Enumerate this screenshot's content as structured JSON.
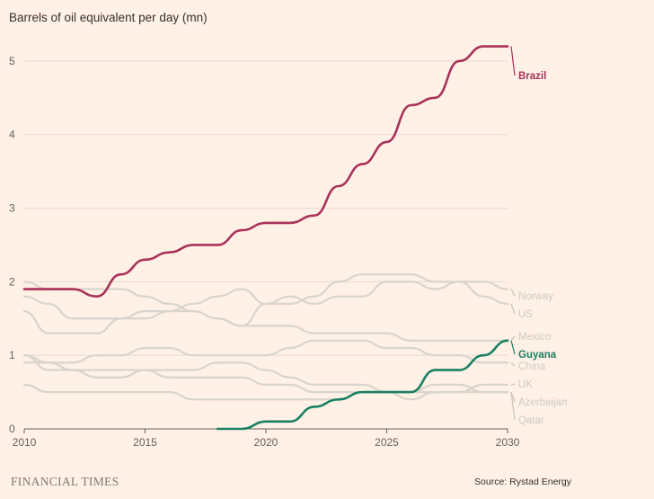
{
  "chart_data": {
    "type": "line",
    "ylabel": "Barrels of oil equivalent per day (mn)",
    "xlim": [
      2010,
      2030
    ],
    "ylim": [
      0,
      5.5
    ],
    "xticks": [
      2010,
      2015,
      2020,
      2025,
      2030
    ],
    "yticks": [
      0,
      1,
      2,
      3,
      4,
      5
    ],
    "grid": "horizontal",
    "legend": "direct labels at right end of lines",
    "colors": {
      "highlight_brazil": "#a8325b",
      "highlight_guyana": "#1a8062",
      "background_lines": "#d9d4cd",
      "muted_label": "#cfc9c2"
    },
    "series": [
      {
        "name": "Brazil",
        "highlight": "brazil",
        "x": [
          2010,
          2011,
          2012,
          2013,
          2014,
          2015,
          2016,
          2017,
          2018,
          2019,
          2020,
          2021,
          2022,
          2023,
          2024,
          2025,
          2026,
          2027,
          2028,
          2029,
          2030
        ],
        "y": [
          1.9,
          1.9,
          1.9,
          1.8,
          2.1,
          2.3,
          2.4,
          2.5,
          2.5,
          2.7,
          2.8,
          2.8,
          2.9,
          3.3,
          3.6,
          3.9,
          4.4,
          4.5,
          5.0,
          5.2,
          5.2
        ]
      },
      {
        "name": "Guyana",
        "highlight": "guyana",
        "x": [
          2018,
          2019,
          2020,
          2021,
          2022,
          2023,
          2024,
          2025,
          2026,
          2027,
          2028,
          2029,
          2030
        ],
        "y": [
          0,
          0,
          0.1,
          0.1,
          0.3,
          0.4,
          0.5,
          0.5,
          0.5,
          0.8,
          0.8,
          1.0,
          1.2
        ]
      },
      {
        "name": "Norway",
        "x": [
          2010,
          2011,
          2012,
          2013,
          2014,
          2015,
          2016,
          2017,
          2018,
          2019,
          2020,
          2021,
          2022,
          2023,
          2024,
          2025,
          2026,
          2027,
          2028,
          2029,
          2030
        ],
        "y": [
          2.0,
          1.9,
          1.9,
          1.9,
          1.9,
          1.8,
          1.7,
          1.6,
          1.5,
          1.4,
          1.7,
          1.7,
          1.8,
          2.0,
          2.1,
          2.1,
          2.1,
          2.0,
          2.0,
          2.0,
          1.9
        ]
      },
      {
        "name": "US",
        "x": [
          2010,
          2011,
          2012,
          2013,
          2014,
          2015,
          2016,
          2017,
          2018,
          2019,
          2020,
          2021,
          2022,
          2023,
          2024,
          2025,
          2026,
          2027,
          2028,
          2029,
          2030
        ],
        "y": [
          1.8,
          1.7,
          1.5,
          1.5,
          1.5,
          1.6,
          1.6,
          1.7,
          1.8,
          1.9,
          1.7,
          1.8,
          1.7,
          1.8,
          1.8,
          2.0,
          2.0,
          1.9,
          2.0,
          1.8,
          1.7
        ]
      },
      {
        "name": "Mexico",
        "x": [
          2010,
          2011,
          2012,
          2013,
          2014,
          2015,
          2016,
          2017,
          2018,
          2019,
          2020,
          2021,
          2022,
          2023,
          2024,
          2025,
          2026,
          2027,
          2028,
          2029,
          2030
        ],
        "y": [
          1.6,
          1.3,
          1.3,
          1.3,
          1.5,
          1.5,
          1.6,
          1.6,
          1.5,
          1.4,
          1.4,
          1.4,
          1.3,
          1.3,
          1.3,
          1.3,
          1.2,
          1.2,
          1.2,
          1.2,
          1.2
        ]
      },
      {
        "name": "China",
        "x": [
          2010,
          2011,
          2012,
          2013,
          2014,
          2015,
          2016,
          2017,
          2018,
          2019,
          2020,
          2021,
          2022,
          2023,
          2024,
          2025,
          2026,
          2027,
          2028,
          2029,
          2030
        ],
        "y": [
          0.9,
          0.9,
          0.9,
          1.0,
          1.0,
          1.1,
          1.1,
          1.0,
          1.0,
          1.0,
          1.0,
          1.1,
          1.2,
          1.2,
          1.2,
          1.1,
          1.1,
          1.0,
          1.0,
          0.9,
          0.9
        ]
      },
      {
        "name": "UK",
        "x": [
          2010,
          2011,
          2012,
          2013,
          2014,
          2015,
          2016,
          2017,
          2018,
          2019,
          2020,
          2021,
          2022,
          2023,
          2024,
          2025,
          2026,
          2027,
          2028,
          2029,
          2030
        ],
        "y": [
          1.0,
          0.9,
          0.8,
          0.7,
          0.7,
          0.8,
          0.7,
          0.7,
          0.7,
          0.7,
          0.6,
          0.6,
          0.5,
          0.5,
          0.5,
          0.5,
          0.4,
          0.5,
          0.5,
          0.6,
          0.6
        ]
      },
      {
        "name": "Azerbaijan",
        "x": [
          2010,
          2011,
          2012,
          2013,
          2014,
          2015,
          2016,
          2017,
          2018,
          2019,
          2020,
          2021,
          2022,
          2023,
          2024,
          2025,
          2026,
          2027,
          2028,
          2029,
          2030
        ],
        "y": [
          1.0,
          0.8,
          0.8,
          0.8,
          0.8,
          0.8,
          0.8,
          0.8,
          0.9,
          0.9,
          0.8,
          0.7,
          0.6,
          0.6,
          0.6,
          0.5,
          0.5,
          0.6,
          0.6,
          0.5,
          0.5
        ]
      },
      {
        "name": "Qatar",
        "x": [
          2010,
          2011,
          2012,
          2013,
          2014,
          2015,
          2016,
          2017,
          2018,
          2019,
          2020,
          2021,
          2022,
          2023,
          2024,
          2025,
          2026,
          2027,
          2028,
          2029,
          2030
        ],
        "y": [
          0.6,
          0.5,
          0.5,
          0.5,
          0.5,
          0.5,
          0.5,
          0.4,
          0.4,
          0.4,
          0.4,
          0.4,
          0.4,
          0.4,
          0.5,
          0.5,
          0.5,
          0.5,
          0.5,
          0.5,
          0.5
        ]
      }
    ]
  },
  "footer": {
    "brand": "FINANCIAL TIMES",
    "source": "Source: Rystad Energy"
  }
}
